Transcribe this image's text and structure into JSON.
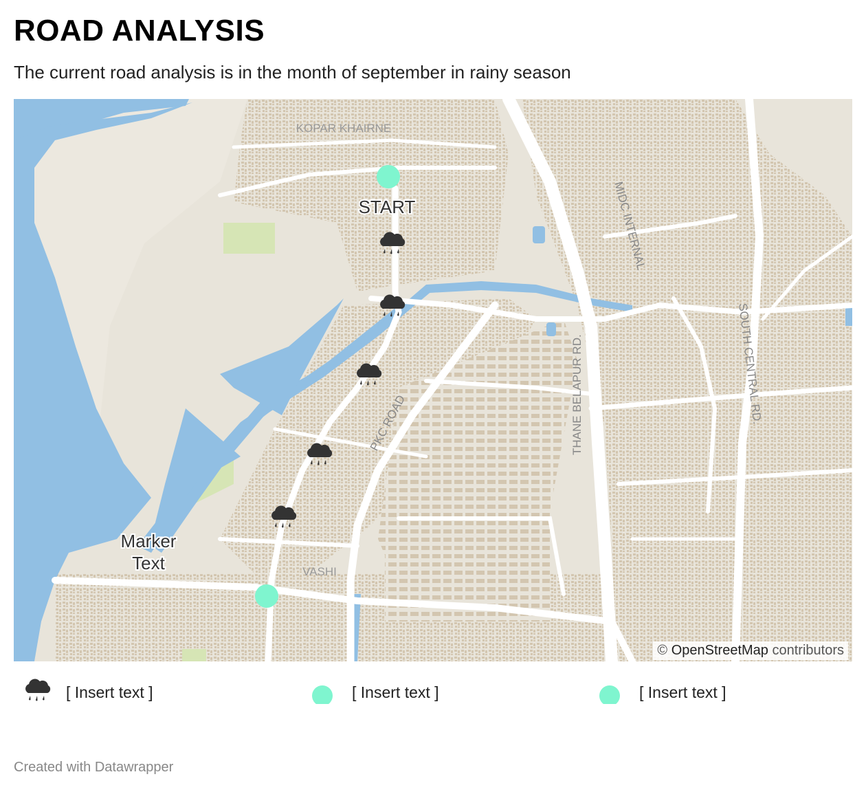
{
  "header": {
    "title": "ROAD ANALYSIS",
    "subtitle": "The current road analysis is in the month of september in rainy season"
  },
  "map": {
    "place_labels": [
      "KOPAR KHAIRNE",
      "VASHI"
    ],
    "road_labels": [
      "MIDC INTERNAL",
      "THANE BELAPUR RD.",
      "SOUTH CENTRAL RD.",
      "PKC ROAD"
    ],
    "markers": {
      "start_label": "START",
      "end_label_line1": "Marker",
      "end_label_line2": "Text",
      "rain_icon_count": 5
    },
    "attribution": {
      "prefix": "©",
      "source": "OpenStreetMap",
      "suffix": "contributors"
    },
    "colors": {
      "land": "#e8e4da",
      "water": "#91bfe3",
      "road": "#ffffff",
      "building": "#d3c6b0",
      "park": "#d6e5b5",
      "marker": "#7ff5cf",
      "rain_icon": "#333333"
    }
  },
  "legend": {
    "items": [
      {
        "icon": "rain-cloud-icon",
        "label": "[ Insert text ]"
      },
      {
        "icon": "circle-marker-icon",
        "label": "[ Insert text ]"
      },
      {
        "icon": "circle-marker-icon",
        "label": "[ Insert text ]"
      }
    ]
  },
  "footer": {
    "credit": "Created with Datawrapper"
  }
}
